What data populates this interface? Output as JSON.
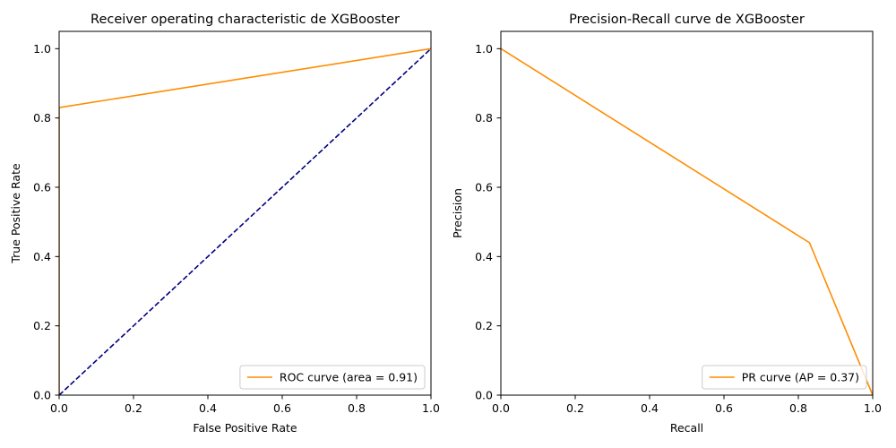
{
  "chart_data": [
    {
      "type": "line",
      "title": "Receiver operating characteristic de XGBooster",
      "xlabel": "False Positive Rate",
      "ylabel": "True Positive Rate",
      "xlim": [
        0.0,
        1.0
      ],
      "ylim": [
        0.0,
        1.05
      ],
      "xticks": [
        "0.0",
        "0.2",
        "0.4",
        "0.6",
        "0.8",
        "1.0"
      ],
      "yticks": [
        "0.0",
        "0.2",
        "0.4",
        "0.6",
        "0.8",
        "1.0"
      ],
      "grid": false,
      "legend_position": "lower right",
      "series": [
        {
          "name": "ROC curve (area = 0.91)",
          "color": "#ff8c00",
          "style": "solid",
          "x": [
            0.0,
            0.0,
            0.0,
            1.0
          ],
          "y": [
            0.0,
            0.0,
            0.83,
            1.0
          ]
        },
        {
          "color": "#000080",
          "style": "dashed",
          "x": [
            0.0,
            1.0
          ],
          "y": [
            0.0,
            1.0
          ]
        }
      ]
    },
    {
      "type": "line",
      "title": "Precision-Recall curve de XGBooster",
      "xlabel": "Recall",
      "ylabel": "Precision",
      "xlim": [
        0.0,
        1.0
      ],
      "ylim": [
        0.0,
        1.05
      ],
      "xticks": [
        "0.0",
        "0.2",
        "0.4",
        "0.6",
        "0.8",
        "1.0"
      ],
      "yticks": [
        "0.0",
        "0.2",
        "0.4",
        "0.6",
        "0.8",
        "1.0"
      ],
      "grid": false,
      "legend_position": "lower right",
      "series": [
        {
          "name": "PR curve (AP = 0.37)",
          "color": "#ff8c00",
          "style": "solid",
          "x": [
            0.0,
            0.83,
            1.0
          ],
          "y": [
            1.0,
            0.44,
            0.0
          ]
        }
      ]
    }
  ]
}
